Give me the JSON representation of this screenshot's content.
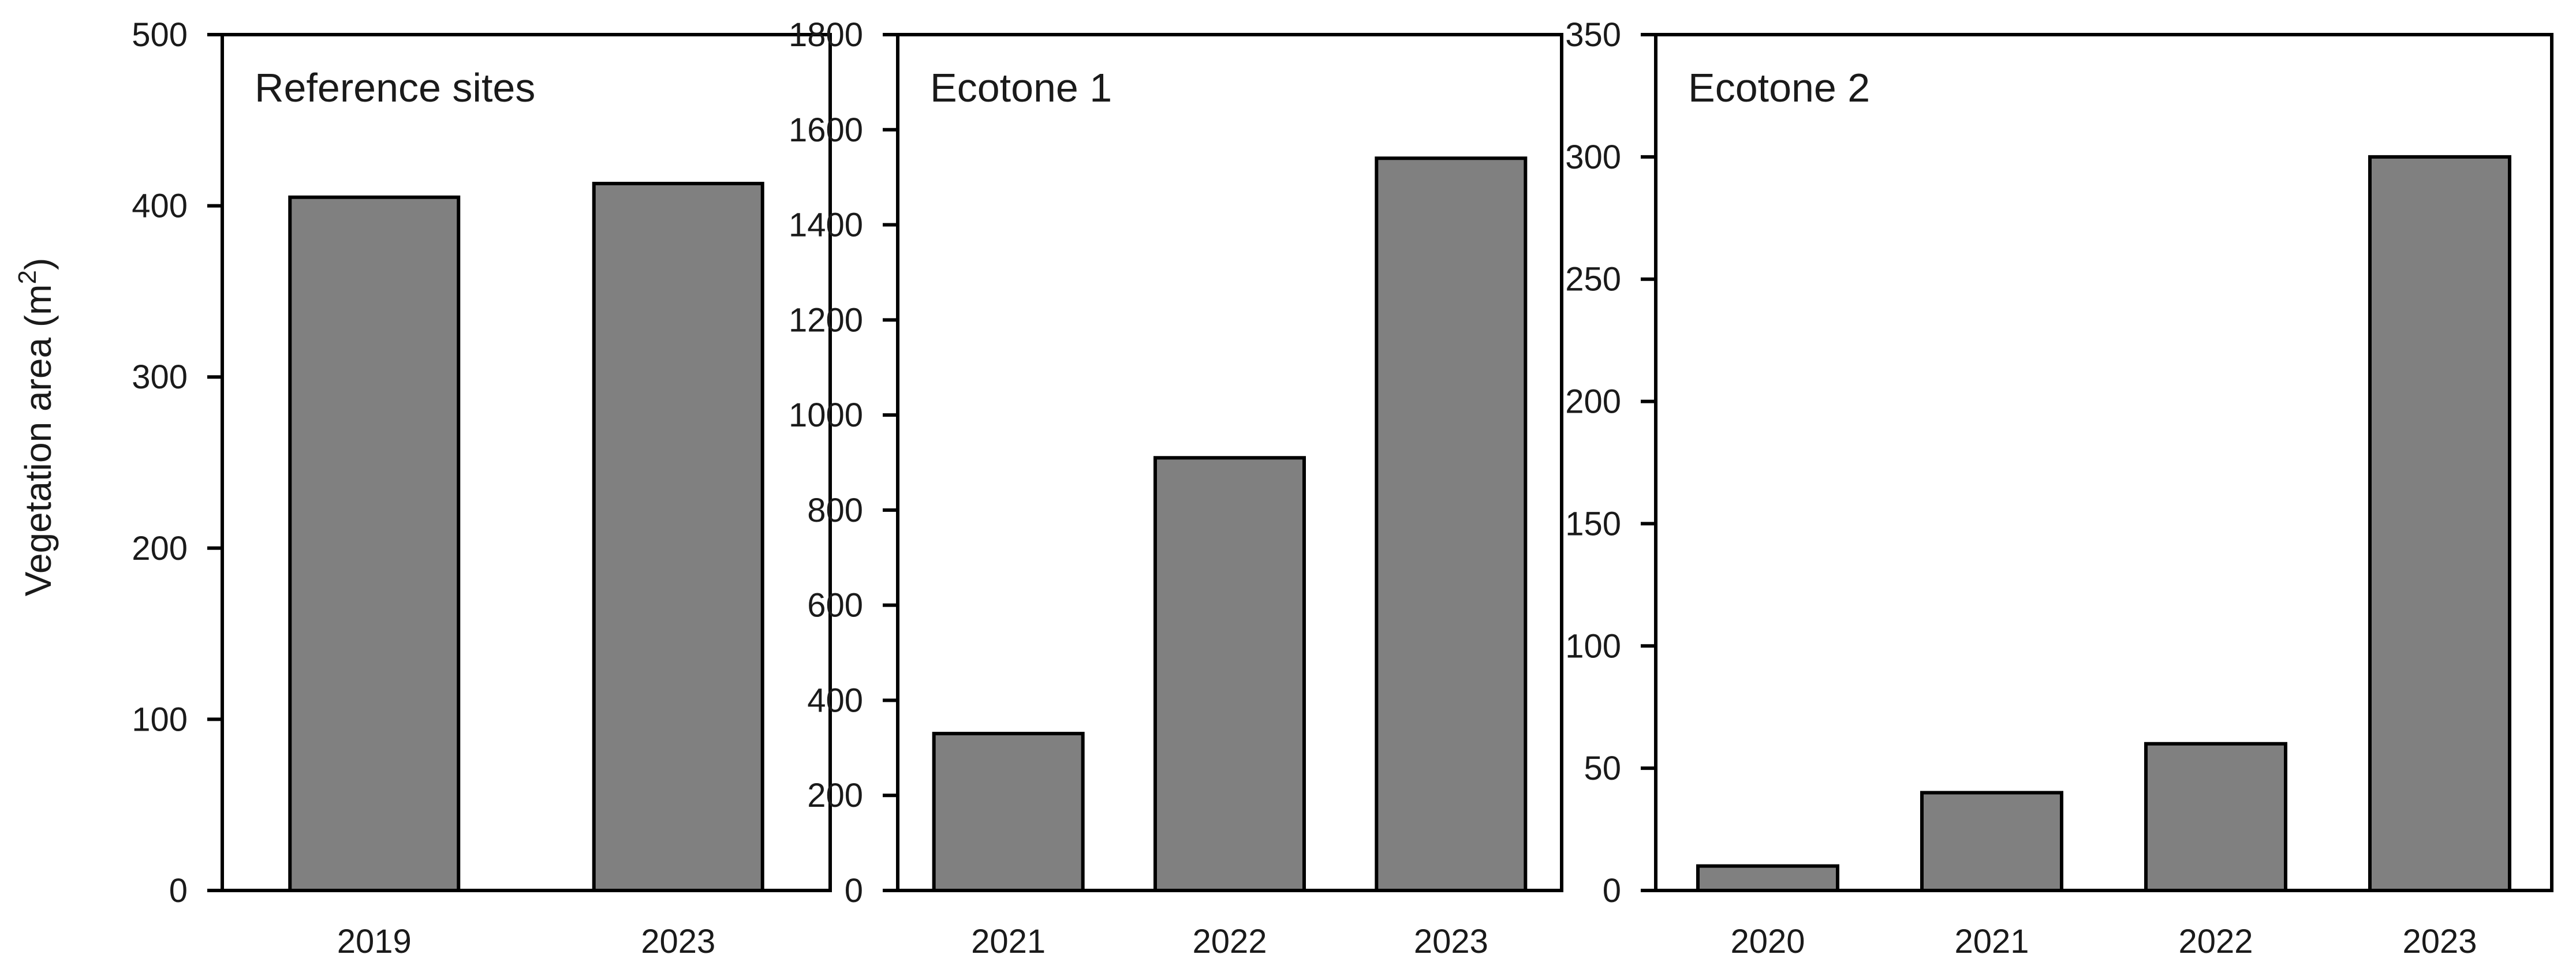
{
  "figure": {
    "y_axis_title": "Vegetation area (m",
    "y_axis_title_sup": "2",
    "y_axis_title_end": ")"
  },
  "chart_data": [
    {
      "type": "bar",
      "title": "Reference sites",
      "categories": [
        "2019",
        "2023"
      ],
      "values": [
        405,
        413
      ],
      "ylim": [
        0,
        500
      ],
      "yticks": [
        0,
        100,
        200,
        300,
        400,
        500
      ],
      "bar_color": "#808080",
      "grid": false
    },
    {
      "type": "bar",
      "title": "Ecotone 1",
      "categories": [
        "2021",
        "2022",
        "2023"
      ],
      "values": [
        330,
        910,
        1540
      ],
      "ylim": [
        0,
        1800
      ],
      "yticks": [
        0,
        200,
        400,
        600,
        800,
        1000,
        1200,
        1400,
        1600,
        1800
      ],
      "bar_color": "#808080",
      "grid": false
    },
    {
      "type": "bar",
      "title": "Ecotone 2",
      "categories": [
        "2020",
        "2021",
        "2022",
        "2023"
      ],
      "values": [
        10,
        40,
        60,
        300
      ],
      "ylim": [
        0,
        350
      ],
      "yticks": [
        0,
        50,
        100,
        150,
        200,
        250,
        300,
        350
      ],
      "bar_color": "#808080",
      "grid": false
    }
  ]
}
